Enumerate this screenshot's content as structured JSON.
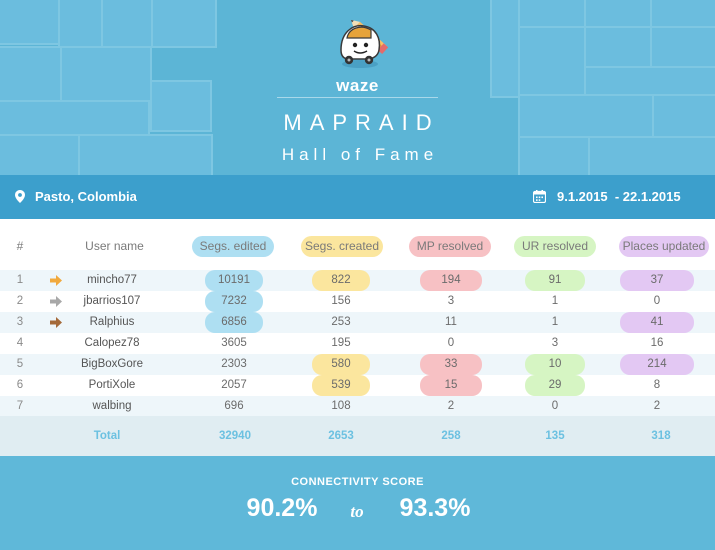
{
  "header": {
    "brand": "waze",
    "title": "MAPRAID",
    "subtitle": "Hall of Fame",
    "logo_icon": "waze-mascot-with-pencil-icon"
  },
  "location": {
    "text": "Pasto, Colombia",
    "icon": "map-pin-icon"
  },
  "dates": {
    "text": "9.1.2015  - 22.1.2015",
    "icon": "calendar-icon"
  },
  "table": {
    "columns": [
      "#",
      "User name",
      "Segs. edited",
      "Segs. created",
      "MP resolved",
      "UR resolved",
      "Places updated"
    ],
    "column_colors": [
      "",
      "",
      "#aedff2",
      "#fbe69e",
      "#f7c1c4",
      "#d6f5c3",
      "#e3c8f3"
    ],
    "rows": [
      {
        "rank": "1",
        "medal": "gold",
        "user": "mincho77",
        "segs_edited": "10191",
        "segs_created": "822",
        "mp_resolved": "194",
        "ur_resolved": "91",
        "places_updated": "37"
      },
      {
        "rank": "2",
        "medal": "silver",
        "user": "jbarrios107",
        "segs_edited": "7232",
        "segs_created": "156",
        "mp_resolved": "3",
        "ur_resolved": "1",
        "places_updated": "0"
      },
      {
        "rank": "3",
        "medal": "bronze",
        "user": "Ralphius",
        "segs_edited": "6856",
        "segs_created": "253",
        "mp_resolved": "11",
        "ur_resolved": "1",
        "places_updated": "41"
      },
      {
        "rank": "4",
        "medal": "",
        "user": "Calopez78",
        "segs_edited": "3605",
        "segs_created": "195",
        "mp_resolved": "0",
        "ur_resolved": "3",
        "places_updated": "16"
      },
      {
        "rank": "5",
        "medal": "",
        "user": "BigBoxGore",
        "segs_edited": "2303",
        "segs_created": "580",
        "mp_resolved": "33",
        "ur_resolved": "10",
        "places_updated": "214"
      },
      {
        "rank": "6",
        "medal": "",
        "user": "PortiXole",
        "segs_edited": "2057",
        "segs_created": "539",
        "mp_resolved": "15",
        "ur_resolved": "29",
        "places_updated": "8"
      },
      {
        "rank": "7",
        "medal": "",
        "user": "walbing",
        "segs_edited": "696",
        "segs_created": "108",
        "mp_resolved": "2",
        "ur_resolved": "0",
        "places_updated": "2"
      }
    ],
    "total": {
      "label": "Total",
      "segs_edited": "32940",
      "segs_created": "2653",
      "mp_resolved": "258",
      "ur_resolved": "135",
      "places_updated": "318"
    }
  },
  "score": {
    "label": "CONNECTIVITY SCORE",
    "from": "90.2%",
    "to_word": "to",
    "to": "93.3%"
  }
}
